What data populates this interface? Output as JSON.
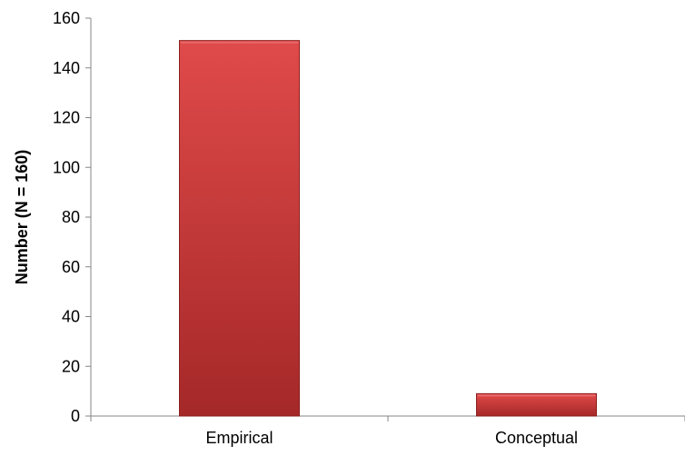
{
  "chart_data": {
    "type": "bar",
    "title": "",
    "xlabel": "",
    "ylabel": "Number (N = 160)",
    "categories": [
      "Empirical",
      "Conceptual"
    ],
    "values": [
      151,
      9
    ],
    "ylim": [
      0,
      160
    ],
    "yticks": [
      0,
      20,
      40,
      60,
      80,
      100,
      120,
      140,
      160
    ],
    "grid": false,
    "legend": "none",
    "colors": {
      "bar_top": "#e04a4a",
      "bar_bottom": "#a52828",
      "bar_edge": "#8a1f1f",
      "axis": "#868686"
    }
  }
}
